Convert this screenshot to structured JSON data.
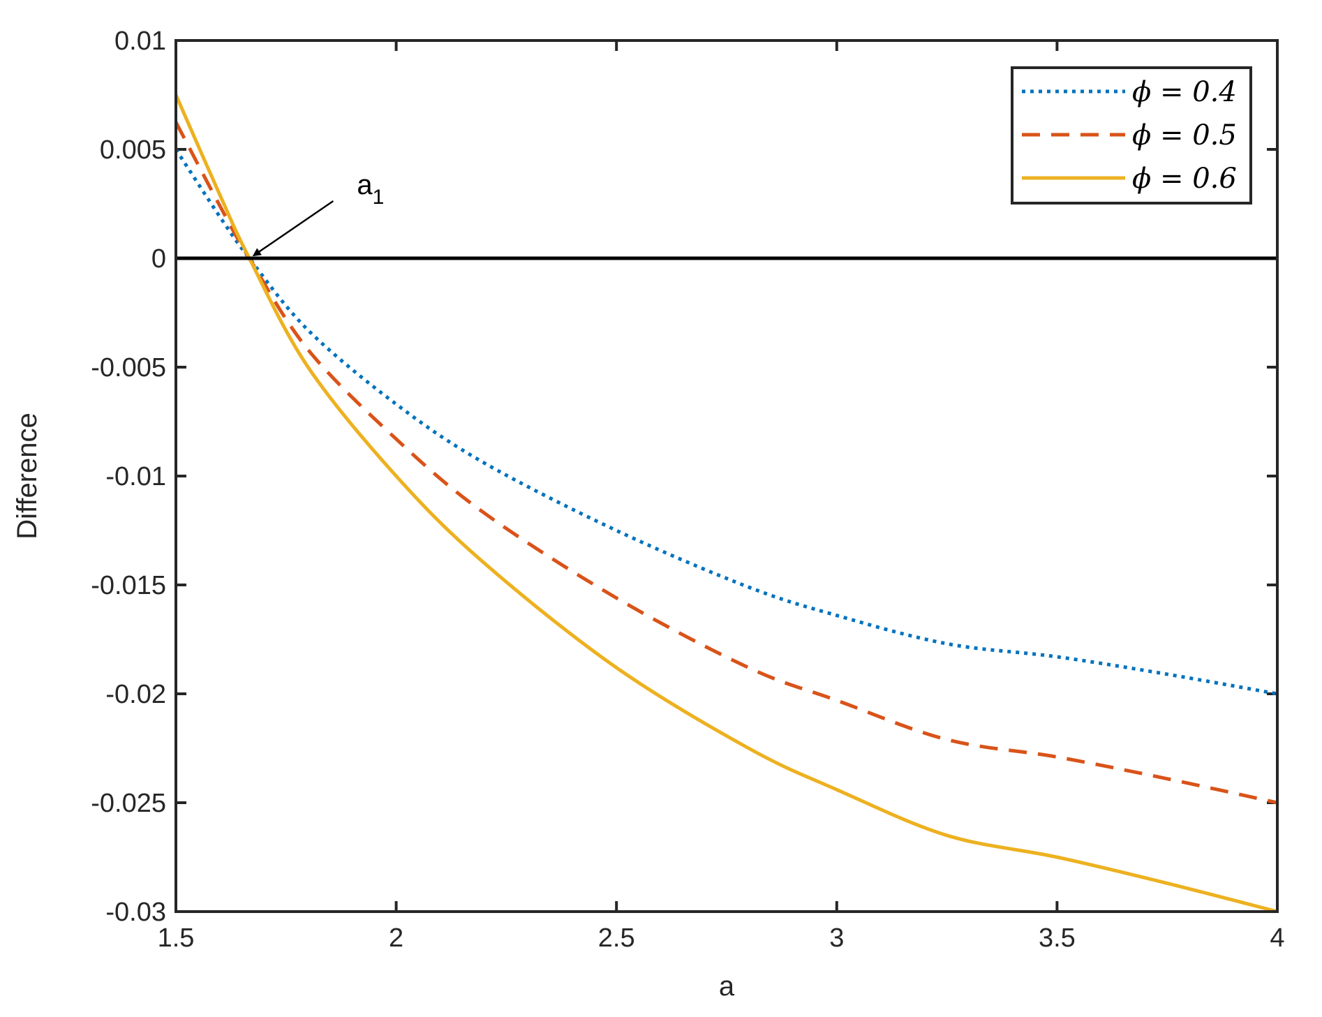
{
  "chart_data": {
    "type": "line",
    "title": "",
    "xlabel": "a",
    "ylabel": "Difference",
    "xlim": [
      1.5,
      4
    ],
    "ylim": [
      -0.03,
      0.01
    ],
    "xticks": [
      1.5,
      2,
      2.5,
      3,
      3.5,
      4
    ],
    "xtick_labels": [
      "1.5",
      "2",
      "2.5",
      "3",
      "3.5",
      "4"
    ],
    "yticks": [
      0.01,
      0.005,
      0,
      -0.005,
      -0.01,
      -0.015,
      -0.02,
      -0.025,
      -0.03
    ],
    "ytick_labels": [
      "0.01",
      "0.005",
      "0",
      "-0.005",
      "-0.01",
      "-0.015",
      "-0.02",
      "-0.025",
      "-0.03"
    ],
    "grid": false,
    "legend_position": "top-right",
    "reference_line": {
      "y": 0,
      "color": "#000000"
    },
    "annotation": {
      "text": "a",
      "subscript": "1",
      "points_to": {
        "x": 1.667,
        "y": 0
      }
    },
    "series": [
      {
        "name": "ϕ = 0.4",
        "style": "dotted",
        "color": "#0072BD",
        "x": [
          1.5,
          1.6,
          1.6667,
          1.8,
          2.0,
          2.2,
          2.5,
          2.8,
          3.0,
          3.25,
          3.5,
          3.75,
          4.0
        ],
        "y": [
          0.005,
          0.0019,
          0.0,
          -0.0033,
          -0.0067,
          -0.0094,
          -0.0125,
          -0.0151,
          -0.0164,
          -0.0177,
          -0.0183,
          -0.0191,
          -0.02
        ]
      },
      {
        "name": "ϕ = 0.5",
        "style": "dashed",
        "color": "#D95319",
        "x": [
          1.5,
          1.6,
          1.6667,
          1.8,
          2.0,
          2.2,
          2.5,
          2.8,
          3.0,
          3.25,
          3.5,
          3.75,
          4.0
        ],
        "y": [
          0.00625,
          0.0024,
          0.0,
          -0.0042,
          -0.0083,
          -0.0117,
          -0.0156,
          -0.0188,
          -0.0203,
          -0.0221,
          -0.0229,
          -0.0239,
          -0.025
        ]
      },
      {
        "name": "ϕ = 0.6",
        "style": "solid",
        "color": "#EDB120",
        "x": [
          1.5,
          1.6,
          1.6667,
          1.8,
          2.0,
          2.2,
          2.5,
          2.8,
          3.0,
          3.25,
          3.5,
          3.75,
          4.0
        ],
        "y": [
          0.0075,
          0.0029,
          0.0,
          -0.005,
          -0.01,
          -0.014,
          -0.0188,
          -0.0225,
          -0.0244,
          -0.0265,
          -0.0275,
          -0.0287,
          -0.03
        ]
      }
    ]
  }
}
